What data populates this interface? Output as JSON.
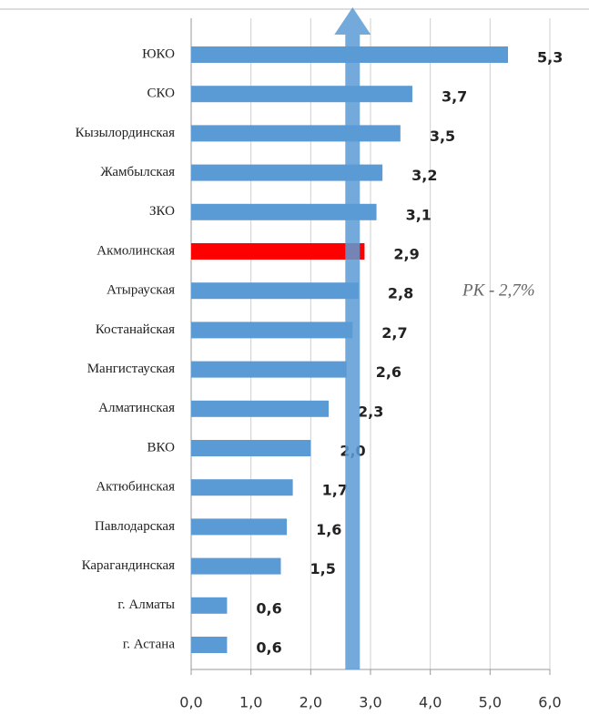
{
  "chart_data": {
    "type": "barh",
    "categories": [
      "ЮКО",
      "СКО",
      "Кызылординская",
      "Жамбылская",
      "ЗКО",
      "Акмолинская",
      "Атырауская",
      "Костанайская",
      "Мангистауская",
      "Алматинская",
      "ВКО",
      "Актюбинская",
      "Павлодарская",
      "Карагандинская",
      "г. Алматы",
      "г. Астана"
    ],
    "values": [
      5.3,
      3.7,
      3.5,
      3.2,
      3.1,
      2.9,
      2.8,
      2.7,
      2.6,
      2.3,
      2.0,
      1.7,
      1.6,
      1.5,
      0.6,
      0.6
    ],
    "value_labels": [
      "5,3",
      "3,7",
      "3,5",
      "3,2",
      "3,1",
      "2,9",
      "2,8",
      "2,7",
      "2,6",
      "2,3",
      "2,0",
      "1,7",
      "1,6",
      "1,5",
      "0,6",
      "0,6"
    ],
    "colors": [
      "#5b9bd5",
      "#5b9bd5",
      "#5b9bd5",
      "#5b9bd5",
      "#5b9bd5",
      "#ff0000",
      "#5b9bd5",
      "#5b9bd5",
      "#5b9bd5",
      "#5b9bd5",
      "#5b9bd5",
      "#5b9bd5",
      "#5b9bd5",
      "#5b9bd5",
      "#5b9bd5",
      "#5b9bd5"
    ],
    "xlim": [
      0,
      6
    ],
    "xticks": [
      {
        "value": 0,
        "label": "0,0"
      },
      {
        "value": 1,
        "label": "1,0"
      },
      {
        "value": 2,
        "label": "2,0"
      },
      {
        "value": 3,
        "label": "3,0"
      },
      {
        "value": 4,
        "label": "4,0"
      },
      {
        "value": 5,
        "label": "5,0"
      },
      {
        "value": 6,
        "label": "6,0"
      }
    ],
    "grid": true,
    "annotation": {
      "text": "РК - 2,7%",
      "value": 2.7
    }
  }
}
